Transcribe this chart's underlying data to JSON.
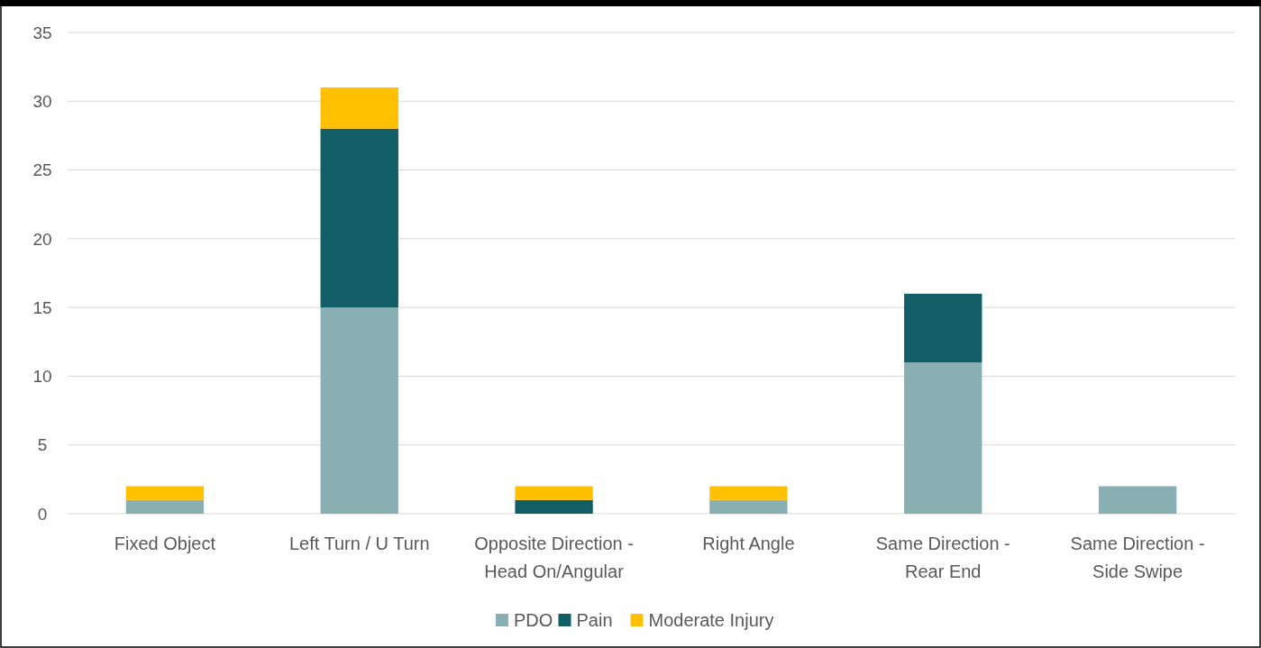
{
  "chart_data": {
    "type": "bar",
    "stacked": true,
    "categories": [
      "Fixed Object",
      "Left Turn / U Turn",
      "Opposite Direction - Head On/Angular",
      "Right Angle",
      "Same Direction - Rear End",
      "Same Direction - Side Swipe"
    ],
    "series": [
      {
        "name": "PDO",
        "color": "#8aafb3",
        "values": [
          1,
          15,
          0,
          1,
          11,
          2
        ]
      },
      {
        "name": "Pain",
        "color": "#115e67",
        "values": [
          0,
          13,
          1,
          0,
          5,
          0
        ]
      },
      {
        "name": "Moderate Injury",
        "color": "#ffc000",
        "values": [
          1,
          3,
          1,
          1,
          0,
          0
        ]
      }
    ],
    "ylim": [
      0,
      35
    ],
    "yticks": [
      0,
      5,
      10,
      15,
      20,
      25,
      30,
      35
    ],
    "grid": "y",
    "legend": "bottom"
  }
}
